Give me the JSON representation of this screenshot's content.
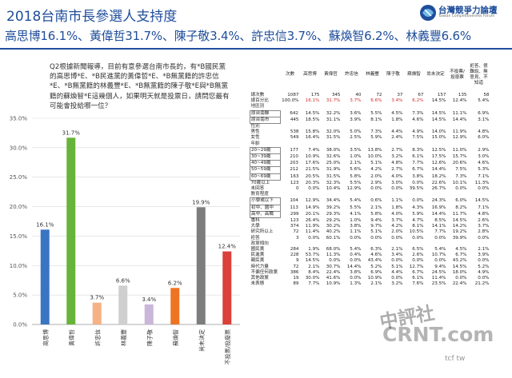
{
  "header": {
    "title": "2018台南市長參選人支持度",
    "subtitle": "高思博16.1%、黃偉哲31.7%、陳子敬3.4%、許忠信3.7%、蘇煥智6.2%、林義豐6.6%",
    "logo_text": "台灣競爭力論壇",
    "logo_sub": "Taiwan Competitiveness Forum"
  },
  "question": "Q2根據新聞報導，目前有意參選台南市長的，有*B國民黨的高思博*E、*B民進黨的黃偉哲*E、*B無黨籍的許忠信*E、*B無黨籍的林義豐*E、*B無黨籍的陳子敬*E與*B無黨籍的蘇煥智*E這幾個人，如果明天就是投票日，請問您最有可能會投給哪一位？",
  "watermark": {
    "line1": "中評社",
    "line2": "CRNT.com",
    "line3": "tcf tw"
  },
  "colors": {
    "brand": "#1f4e9b",
    "highlight": "#d62b2b"
  },
  "chart_data": {
    "type": "bar",
    "categories": [
      "高思博",
      "黃偉哲",
      "許忠信",
      "林義豐",
      "陳子敬",
      "蘇煥智",
      "尚未決定",
      "不投票/投廢票"
    ],
    "values": [
      16.1,
      31.7,
      3.7,
      6.6,
      3.4,
      6.2,
      19.9,
      12.4
    ],
    "value_labels": [
      "16.1%",
      "31.7%",
      "3.7%",
      "6.6%",
      "3.4%",
      "6.2%",
      "19.9%",
      "12.4%"
    ],
    "colors": [
      "#3a75c4",
      "#68b33a",
      "#f6b184",
      "#cfcfcf",
      "#c9b6d8",
      "#ee7424",
      "#7d7d7d",
      "#d9413a"
    ],
    "ylim": [
      0,
      35
    ],
    "ytick_labels": [
      "0.0%",
      "5.0%",
      "10.0%",
      "15.0%",
      "20.0%",
      "25.0%",
      "30.0%",
      "35.0%"
    ],
    "grid": true,
    "title": "",
    "xlabel": "",
    "ylabel": ""
  },
  "table": {
    "headers": [
      "",
      "次數",
      "高思博",
      "黃偉哲",
      "許忠信",
      "林義豐",
      "陳子敬",
      "蘇煥智",
      "尚未決定",
      "不投票/投廢票",
      "拒答、很難說、無意見、不知道"
    ],
    "highlight_col": 6,
    "rows": [
      {
        "cells": [
          "總次數",
          "1087",
          "175",
          "345",
          "40",
          "72",
          "37",
          "67",
          "157",
          "135",
          "58"
        ]
      },
      {
        "cells": [
          "總百分比",
          "100.0%",
          "16.1%",
          "31.7%",
          "3.7%",
          "6.6%",
          "3.4%",
          "6.2%",
          "14.5%",
          "12.4%",
          "5.4%"
        ],
        "red": true
      },
      {
        "cells": [
          "地區別",
          "",
          "",
          "",
          "",
          "",
          "",
          "",
          "",
          "",
          ""
        ],
        "cat": true
      },
      {
        "cells": [
          "原台南縣",
          "642",
          "14.5%",
          "32.2%",
          "3.6%",
          "5.5%",
          "4.5%",
          "7.3%",
          "14.5%",
          "11.1%",
          "6.9%"
        ],
        "boxed": true
      },
      {
        "cells": [
          "原台南市",
          "445",
          "18.5%",
          "31.1%",
          "3.9%",
          "8.1%",
          "1.8%",
          "4.6%",
          "14.5%",
          "14.4%",
          "3.1%"
        ],
        "boxed": true
      },
      {
        "cells": [
          "性別",
          "",
          "",
          "",
          "",
          "",
          "",
          "",
          "",
          "",
          ""
        ],
        "cat": true
      },
      {
        "cells": [
          "男性",
          "538",
          "15.8%",
          "32.0%",
          "5.0%",
          "7.3%",
          "4.4%",
          "4.9%",
          "14.0%",
          "11.9%",
          "4.8%"
        ]
      },
      {
        "cells": [
          "女性",
          "549",
          "16.4%",
          "31.5%",
          "2.5%",
          "5.9%",
          "2.4%",
          "7.5%",
          "15.0%",
          "12.9%",
          "6.0%"
        ]
      },
      {
        "cells": [
          "年齡",
          "",
          "",
          "",
          "",
          "",
          "",
          "",
          "",
          "",
          ""
        ],
        "cat": true
      },
      {
        "cells": [
          "20~29歲",
          "177",
          "7.4%",
          "38.0%",
          "3.5%",
          "13.8%",
          "2.7%",
          "8.3%",
          "12.5%",
          "11.0%",
          "2.9%"
        ],
        "boxed": true
      },
      {
        "cells": [
          "30~39歲",
          "210",
          "10.9%",
          "32.6%",
          "1.0%",
          "10.0%",
          "3.2%",
          "6.1%",
          "17.5%",
          "15.7%",
          "3.0%"
        ],
        "boxed": true
      },
      {
        "cells": [
          "40~49歲",
          "203",
          "17.6%",
          "25.0%",
          "2.1%",
          "5.1%",
          "4.8%",
          "7.7%",
          "12.6%",
          "20.6%",
          "4.6%"
        ],
        "boxed": true
      },
      {
        "cells": [
          "50~59歲",
          "212",
          "21.5%",
          "31.9%",
          "5.6%",
          "4.2%",
          "2.7%",
          "6.7%",
          "14.4%",
          "7.5%",
          "5.3%"
        ],
        "boxed": true
      },
      {
        "cells": [
          "60~69歲",
          "163",
          "20.5%",
          "31.5%",
          "5.8%",
          "2.0%",
          "4.0%",
          "3.8%",
          "18.2%",
          "7.3%",
          "7.1%"
        ],
        "boxed": true
      },
      {
        "cells": [
          "70歲以上",
          "123",
          "20.3%",
          "32.3%",
          "5.5%",
          "2.9%",
          "3.0%",
          "0.0%",
          "22.6%",
          "10.1%",
          "11.3%"
        ]
      },
      {
        "cells": [
          "未回答",
          "0",
          "0.0%",
          "10.4%",
          "12.9%",
          "0.0%",
          "0.0%",
          "39.5%",
          "26.7%",
          "0.0%",
          "0.0%"
        ]
      },
      {
        "cells": [
          "教育程度",
          "",
          "",
          "",
          "",
          "",
          "",
          "",
          "",
          "",
          ""
        ],
        "cat": true
      },
      {
        "cells": [
          "小學或以下",
          "104",
          "12.9%",
          "34.4%",
          "5.4%",
          "0.6%",
          "1.1%",
          "0.0%",
          "24.3%",
          "6.0%",
          "14.5%"
        ],
        "boxed": true
      },
      {
        "cells": [
          "初中、國中",
          "113",
          "14.9%",
          "39.2%",
          "5.5%",
          "2.1%",
          "1.8%",
          "4.3%",
          "16.9%",
          "8.2%",
          "7.1%"
        ],
        "boxed": true
      },
      {
        "cells": [
          "高中、高職",
          "299",
          "20.1%",
          "29.3%",
          "4.1%",
          "5.8%",
          "4.0%",
          "5.9%",
          "14.4%",
          "11.7%",
          "4.8%"
        ],
        "boxed": true
      },
      {
        "cells": [
          "專科",
          "123",
          "26.4%",
          "29.2%",
          "1.0%",
          "9.4%",
          "3.7%",
          "4.7%",
          "8.5%",
          "14.5%",
          "2.6%"
        ]
      },
      {
        "cells": [
          "大學",
          "374",
          "11.9%",
          "30.2%",
          "3.8%",
          "9.7%",
          "4.2%",
          "8.1%",
          "14.1%",
          "14.2%",
          "3.7%"
        ]
      },
      {
        "cells": [
          "研究所以上",
          "72",
          "11.4%",
          "40.2%",
          "1.1%",
          "5.1%",
          "2.0%",
          "10.5%",
          "7.7%",
          "19.2%",
          "2.8%"
        ]
      },
      {
        "cells": [
          "拒答",
          "3",
          "0.0%",
          "60.1%",
          "0.0%",
          "0.0%",
          "0.0%",
          "0.0%",
          "0.0%",
          "39.9%",
          "0.0%"
        ]
      },
      {
        "cells": [
          "政黨傾向",
          "",
          "",
          "",
          "",
          "",
          "",
          "",
          "",
          "",
          ""
        ],
        "cat": true
      },
      {
        "cells": [
          "國民黨",
          "284",
          "1.9%",
          "68.0%",
          "5.4%",
          "6.3%",
          "2.1%",
          "6.5%",
          "5.4%",
          "4.5%",
          "2.1%"
        ]
      },
      {
        "cells": [
          "民進黨",
          "228",
          "53.7%",
          "11.3%",
          "0.4%",
          "4.6%",
          "3.4%",
          "2.6%",
          "10.7%",
          "6.7%",
          "3.9%"
        ]
      },
      {
        "cells": [
          "親民黨",
          "9",
          "14.5%",
          "0.0%",
          "0.0%",
          "43.4%",
          "0.0%",
          "0.0%",
          "0.0%",
          "43.2%",
          "0.0%"
        ]
      },
      {
        "cells": [
          "時代力量",
          "72",
          "2.1%",
          "30.7%",
          "14.4%",
          "5.2%",
          "5.1%",
          "12.7%",
          "9.4%",
          "14.5%",
          "5.2%"
        ]
      },
      {
        "cells": [
          "不偏任何政黨",
          "386",
          "8.4%",
          "22.4%",
          "3.8%",
          "6.9%",
          "4.4%",
          "6.7%",
          "24.5%",
          "18.0%",
          "4.9%"
        ]
      },
      {
        "cells": [
          "其他政黨",
          "19",
          "30.0%",
          "41.6%",
          "0.0%",
          "10.9%",
          "0.0%",
          "6.1%",
          "11.4%",
          "0.0%",
          "0.0%"
        ]
      },
      {
        "cells": [
          "未表態",
          "89",
          "7.7%",
          "10.9%",
          "1.3%",
          "2.1%",
          "3.2%",
          "7.6%",
          "23.5%",
          "22.4%",
          "21.2%"
        ]
      }
    ]
  }
}
